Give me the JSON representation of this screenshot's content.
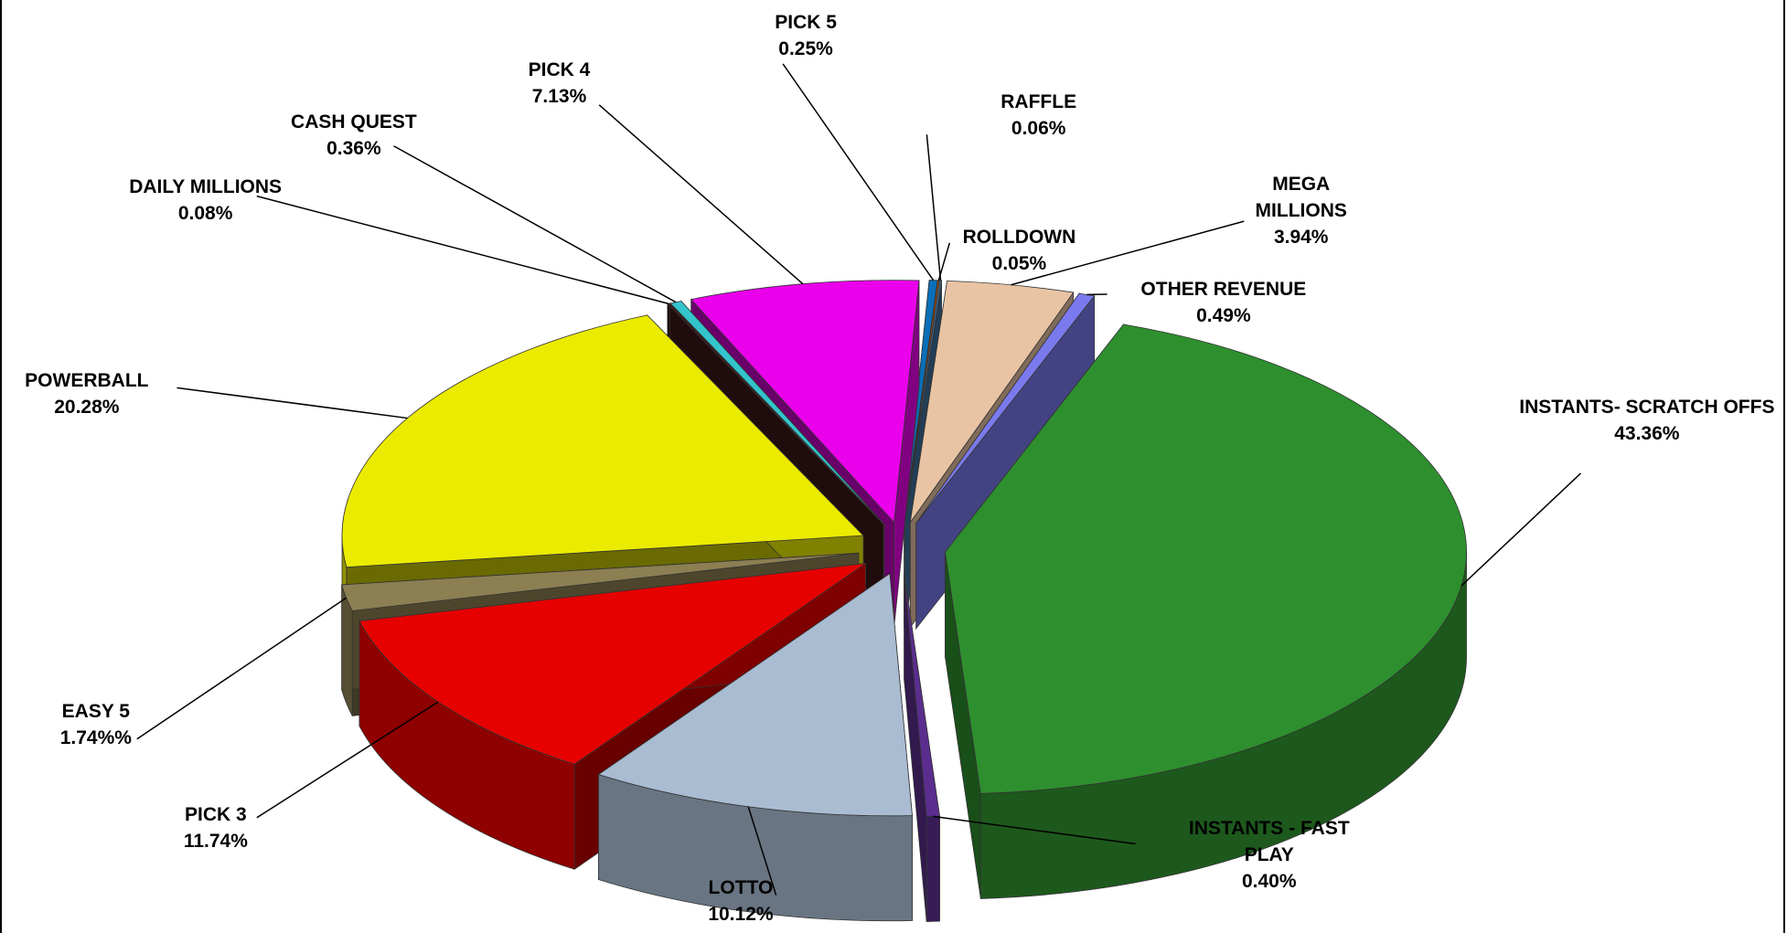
{
  "chart_data": {
    "type": "pie3d",
    "categories": [
      "INSTANTS- SCRATCH OFFS",
      "INSTANTS - FAST PLAY",
      "LOTTO",
      "PICK 3",
      "EASY 5",
      "POWERBALL",
      "DAILY MILLIONS",
      "CASH QUEST",
      "PICK 4",
      "PICK 5",
      "ROLLDOWN",
      "RAFFLE",
      "MEGA MILLIONS",
      "OTHER REVENUE"
    ],
    "values": [
      43.36,
      0.4,
      10.12,
      11.74,
      1.74,
      20.28,
      0.08,
      0.36,
      7.13,
      0.25,
      0.05,
      0.06,
      3.94,
      0.49
    ],
    "value_labels": [
      "43.36%",
      "0.40%",
      "10.12%",
      "11.74%",
      "1.74%%",
      "20.28%",
      "0.08%",
      "0.36%",
      "7.13%",
      "0.25%",
      "0.05%",
      "0.06%",
      "3.94%",
      "0.49%"
    ],
    "colors": [
      "#2e8f2e",
      "#5b2d8e",
      "#a9bcd2",
      "#e60000",
      "#8c7f52",
      "#ebeb00",
      "#3a1515",
      "#33c4cc",
      "#ea00ea",
      "#0a6fb8",
      "#c05000",
      "#3d6f9a",
      "#e8c4a4",
      "#7a7aee"
    ]
  }
}
